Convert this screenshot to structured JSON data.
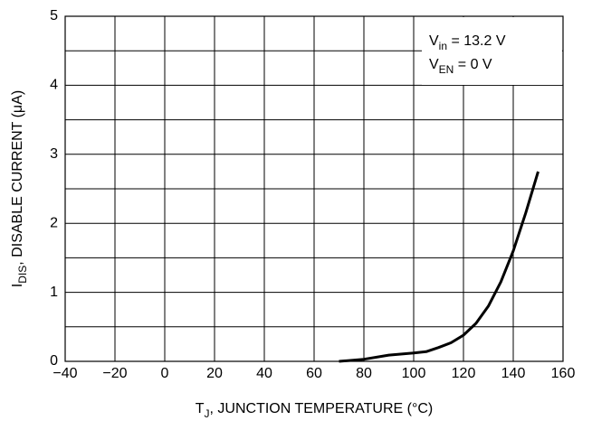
{
  "chart_data": {
    "type": "line",
    "xlabel": {
      "main": "T",
      "sub": "J",
      "rest": ", JUNCTION TEMPERATURE (°C)"
    },
    "ylabel": {
      "main": "I",
      "sub": "DIS",
      "rest": ", DISABLE CURRENT (μA)"
    },
    "annotations": [
      {
        "main": "V",
        "sub": "in",
        "rest": " = 13.2 V"
      },
      {
        "main": "V",
        "sub": "EN",
        "rest": " = 0 V"
      }
    ],
    "x": [
      70,
      80,
      90,
      100,
      105,
      110,
      115,
      120,
      125,
      130,
      135,
      140,
      145,
      150
    ],
    "series": [
      {
        "name": "Disable current",
        "color": "#000000",
        "values": [
          0,
          0.03,
          0.09,
          0.12,
          0.14,
          0.2,
          0.27,
          0.38,
          0.55,
          0.8,
          1.15,
          1.6,
          2.15,
          2.75
        ]
      }
    ],
    "xlim": [
      -40,
      160
    ],
    "xticks": [
      {
        "value": -40,
        "label": "−40"
      },
      {
        "value": -20,
        "label": "−20"
      },
      0,
      20,
      40,
      60,
      80,
      100,
      120,
      140,
      160
    ],
    "ylim": [
      0,
      5
    ],
    "yticks": [
      0,
      1,
      2,
      3,
      4,
      5
    ],
    "yminor": [
      0.5,
      1.5,
      2.5,
      3.5,
      4.5
    ],
    "grid": true
  }
}
